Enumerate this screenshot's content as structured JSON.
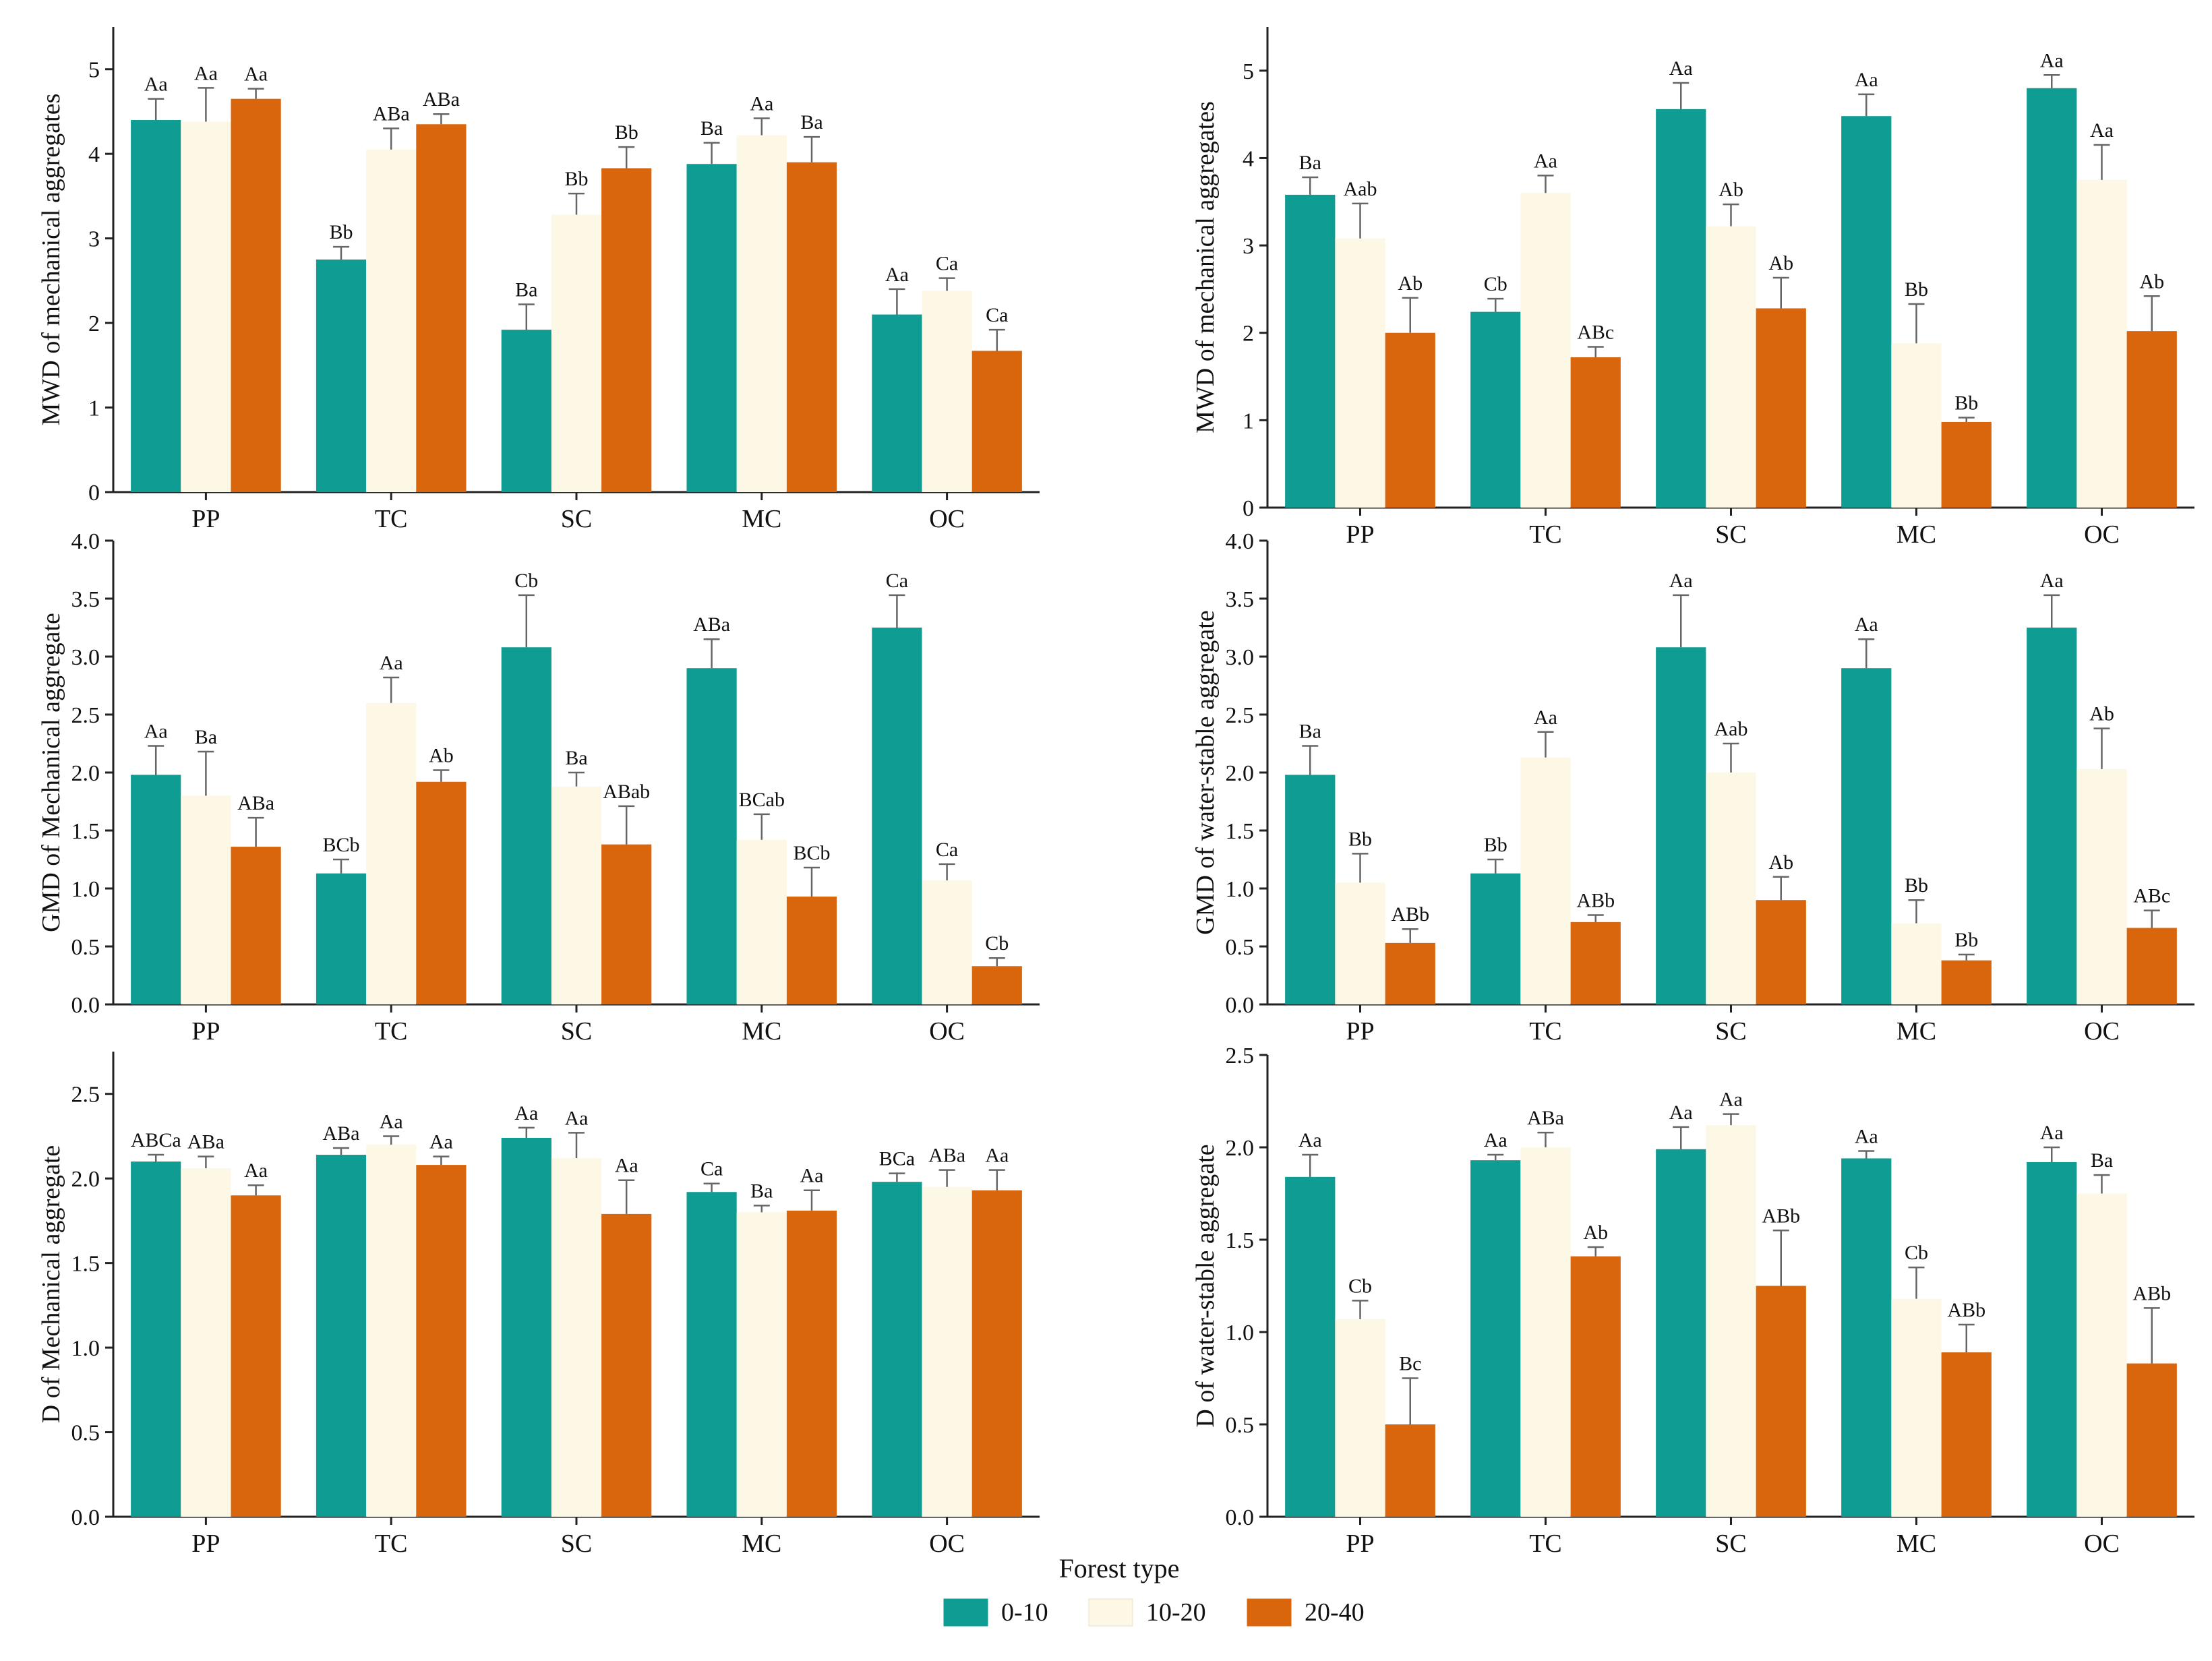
{
  "figure": {
    "x_title": "Forest type",
    "legend": [
      {
        "label": "0-10",
        "color": "#0e9c93"
      },
      {
        "label": "10-20",
        "color": "#fdf7e6"
      },
      {
        "label": "20-40",
        "color": "#d9660d"
      }
    ]
  },
  "chart_data": [
    {
      "type": "bar",
      "panel": "top-left",
      "ylabel": "MWD of mechanical aggregates",
      "categories": [
        "PP",
        "TC",
        "SC",
        "MC",
        "OC"
      ],
      "ylim": [
        0,
        5.5
      ],
      "yticks": [
        "0",
        "1",
        "2",
        "3",
        "4",
        "5"
      ],
      "ytick_values": [
        0,
        1,
        2,
        3,
        4,
        5
      ],
      "series": [
        {
          "name": "0-10",
          "values": [
            4.4,
            2.75,
            1.92,
            3.88,
            2.1
          ],
          "errors": [
            0.25,
            0.15,
            0.3,
            0.25,
            0.3
          ],
          "labels": [
            "Aa",
            "Bb",
            "Ba",
            "Ba",
            "Aa"
          ]
        },
        {
          "name": "10-20",
          "values": [
            4.38,
            4.05,
            3.28,
            4.22,
            2.38
          ],
          "errors": [
            0.4,
            0.25,
            0.25,
            0.2,
            0.15
          ],
          "labels": [
            "Aa",
            "ABa",
            "Bb",
            "Aa",
            "Ca"
          ]
        },
        {
          "name": "20-40",
          "values": [
            4.65,
            4.35,
            3.83,
            3.9,
            1.67
          ],
          "errors": [
            0.12,
            0.12,
            0.25,
            0.3,
            0.25
          ],
          "labels": [
            "Aa",
            "ABa",
            "Bb",
            "Ba",
            "Ca"
          ]
        }
      ]
    },
    {
      "type": "bar",
      "panel": "top-right",
      "ylabel": "MWD of mechanical aggregates",
      "categories": [
        "PP",
        "TC",
        "SC",
        "MC",
        "OC"
      ],
      "ylim": [
        0,
        5.5
      ],
      "yticks": [
        "0",
        "1",
        "2",
        "3",
        "4",
        "5"
      ],
      "ytick_values": [
        0,
        1,
        2,
        3,
        4,
        5
      ],
      "series": [
        {
          "name": "0-10",
          "values": [
            3.58,
            2.24,
            4.56,
            4.48,
            4.8
          ],
          "errors": [
            0.2,
            0.15,
            0.3,
            0.25,
            0.15
          ],
          "labels": [
            "Ba",
            "Cb",
            "Aa",
            "Aa",
            "Aa"
          ]
        },
        {
          "name": "10-20",
          "values": [
            3.08,
            3.6,
            3.22,
            1.88,
            3.75
          ],
          "errors": [
            0.4,
            0.2,
            0.25,
            0.45,
            0.4
          ],
          "labels": [
            "Aab",
            "Aa",
            "Ab",
            "Bb",
            "Aa"
          ]
        },
        {
          "name": "20-40",
          "values": [
            2.0,
            1.72,
            2.28,
            0.98,
            2.02
          ],
          "errors": [
            0.4,
            0.12,
            0.35,
            0.05,
            0.4
          ],
          "labels": [
            "Ab",
            "ABc",
            "Ab",
            "Bb",
            "Ab"
          ]
        }
      ]
    },
    {
      "type": "bar",
      "panel": "middle-left",
      "ylabel": "GMD of Mechanical aggregate",
      "categories": [
        "PP",
        "TC",
        "SC",
        "MC",
        "OC"
      ],
      "ylim": [
        0,
        4.0
      ],
      "yticks": [
        "0.0",
        "0.5",
        "1.0",
        "1.5",
        "2.0",
        "2.5",
        "3.0",
        "3.5",
        "4.0"
      ],
      "ytick_values": [
        0,
        0.5,
        1.0,
        1.5,
        2.0,
        2.5,
        3.0,
        3.5,
        4.0
      ],
      "series": [
        {
          "name": "0-10",
          "values": [
            1.98,
            1.13,
            3.08,
            2.9,
            3.25
          ],
          "errors": [
            0.25,
            0.12,
            0.45,
            0.25,
            0.28
          ],
          "labels": [
            "Aa",
            "BCb",
            "Cb",
            "ABa",
            "Ca"
          ]
        },
        {
          "name": "10-20",
          "values": [
            1.8,
            2.6,
            1.88,
            1.42,
            1.07
          ],
          "errors": [
            0.38,
            0.22,
            0.12,
            0.22,
            0.14
          ],
          "labels": [
            "Ba",
            "Aa",
            "Ba",
            "BCab",
            "Ca"
          ]
        },
        {
          "name": "20-40",
          "values": [
            1.36,
            1.92,
            1.38,
            0.93,
            0.33
          ],
          "errors": [
            0.25,
            0.1,
            0.33,
            0.25,
            0.07
          ],
          "labels": [
            "ABa",
            "Ab",
            "ABab",
            "BCb",
            "Cb"
          ]
        }
      ]
    },
    {
      "type": "bar",
      "panel": "middle-right",
      "ylabel": "GMD of water-stable aggregate",
      "categories": [
        "PP",
        "TC",
        "SC",
        "MC",
        "OC"
      ],
      "ylim": [
        0,
        4.0
      ],
      "yticks": [
        "0.0",
        "0.5",
        "1.0",
        "1.5",
        "2.0",
        "2.5",
        "3.0",
        "3.5",
        "4.0"
      ],
      "ytick_values": [
        0,
        0.5,
        1.0,
        1.5,
        2.0,
        2.5,
        3.0,
        3.5,
        4.0
      ],
      "series": [
        {
          "name": "0-10",
          "values": [
            1.98,
            1.13,
            3.08,
            2.9,
            3.25
          ],
          "errors": [
            0.25,
            0.12,
            0.45,
            0.25,
            0.28
          ],
          "labels": [
            "Ba",
            "Bb",
            "Aa",
            "Aa",
            "Aa"
          ]
        },
        {
          "name": "10-20",
          "values": [
            1.05,
            2.13,
            2.0,
            0.7,
            2.03
          ],
          "errors": [
            0.25,
            0.22,
            0.25,
            0.2,
            0.35
          ],
          "labels": [
            "Bb",
            "Aa",
            "Aab",
            "Bb",
            "Ab"
          ]
        },
        {
          "name": "20-40",
          "values": [
            0.53,
            0.71,
            0.9,
            0.38,
            0.66
          ],
          "errors": [
            0.12,
            0.06,
            0.2,
            0.05,
            0.15
          ],
          "labels": [
            "ABb",
            "ABb",
            "Ab",
            "Bb",
            "ABc"
          ]
        }
      ]
    },
    {
      "type": "bar",
      "panel": "bottom-left",
      "ylabel": "D of Mechanical aggregate",
      "categories": [
        "PP",
        "TC",
        "SC",
        "MC",
        "OC"
      ],
      "ylim": [
        0,
        2.75
      ],
      "yticks": [
        "0.0",
        "0.5",
        "1.0",
        "1.5",
        "2.0",
        "2.5"
      ],
      "ytick_values": [
        0,
        0.5,
        1.0,
        1.5,
        2.0,
        2.5
      ],
      "series": [
        {
          "name": "0-10",
          "values": [
            2.1,
            2.14,
            2.24,
            1.92,
            1.98
          ],
          "errors": [
            0.04,
            0.04,
            0.06,
            0.05,
            0.05
          ],
          "labels": [
            "ABCa",
            "ABa",
            "Aa",
            "Ca",
            "BCa"
          ]
        },
        {
          "name": "10-20",
          "values": [
            2.06,
            2.2,
            2.12,
            1.8,
            1.95
          ],
          "errors": [
            0.07,
            0.05,
            0.15,
            0.04,
            0.1
          ],
          "labels": [
            "ABa",
            "Aa",
            "Aa",
            "Ba",
            "ABa"
          ]
        },
        {
          "name": "20-40",
          "values": [
            1.9,
            2.08,
            1.79,
            1.81,
            1.93
          ],
          "errors": [
            0.06,
            0.05,
            0.2,
            0.12,
            0.12
          ],
          "labels": [
            "Aa",
            "Aa",
            "Aa",
            "Aa",
            "Aa"
          ]
        }
      ]
    },
    {
      "type": "bar",
      "panel": "bottom-right",
      "ylabel": "D of water-stable aggregate",
      "categories": [
        "PP",
        "TC",
        "SC",
        "MC",
        "OC"
      ],
      "ylim": [
        0,
        2.5
      ],
      "yticks": [
        "0.0",
        "0.5",
        "1.0",
        "1.5",
        "2.0",
        "2.5"
      ],
      "ytick_values": [
        0,
        0.5,
        1.0,
        1.5,
        2.0,
        2.5
      ],
      "series": [
        {
          "name": "0-10",
          "values": [
            1.84,
            1.93,
            1.99,
            1.94,
            1.92
          ],
          "errors": [
            0.12,
            0.03,
            0.12,
            0.04,
            0.08
          ],
          "labels": [
            "Aa",
            "Aa",
            "Aa",
            "Aa",
            "Aa"
          ]
        },
        {
          "name": "10-20",
          "values": [
            1.07,
            2.0,
            2.12,
            1.18,
            1.75
          ],
          "errors": [
            0.1,
            0.08,
            0.06,
            0.17,
            0.1
          ],
          "labels": [
            "Cb",
            "ABa",
            "Aa",
            "Cb",
            "Ba"
          ]
        },
        {
          "name": "20-40",
          "values": [
            0.5,
            1.41,
            1.25,
            0.89,
            0.83
          ],
          "errors": [
            0.25,
            0.05,
            0.3,
            0.15,
            0.3
          ],
          "labels": [
            "Bc",
            "Ab",
            "ABb",
            "ABb",
            "ABb"
          ]
        }
      ]
    }
  ]
}
